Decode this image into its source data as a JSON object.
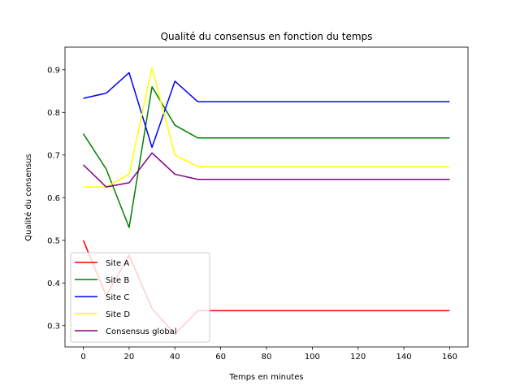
{
  "chart_data": {
    "type": "line",
    "title": "Qualité du consensus en fonction du temps",
    "xlabel": "Temps en minutes",
    "ylabel": "Qualité du consensus",
    "x": [
      0,
      10,
      20,
      30,
      40,
      50,
      60,
      70,
      80,
      90,
      100,
      110,
      120,
      130,
      140,
      150,
      160
    ],
    "xlim": [
      -8,
      168
    ],
    "ylim": [
      0.25,
      0.953
    ],
    "xticks": [
      0,
      20,
      40,
      60,
      80,
      100,
      120,
      140,
      160
    ],
    "yticks": [
      0.3,
      0.4,
      0.5,
      0.6,
      0.7,
      0.8,
      0.9
    ],
    "xtick_labels": [
      "0",
      "20",
      "40",
      "60",
      "80",
      "100",
      "120",
      "140",
      "160"
    ],
    "ytick_labels": [
      "0.3",
      "0.4",
      "0.5",
      "0.6",
      "0.7",
      "0.8",
      "0.9"
    ],
    "grid": false,
    "legend_position": "lower-left",
    "series": [
      {
        "name": "Site A",
        "color": "#ff0000",
        "values": [
          0.5,
          0.37,
          0.465,
          0.34,
          0.28,
          0.335,
          0.335,
          0.335,
          0.335,
          0.335,
          0.335,
          0.335,
          0.335,
          0.335,
          0.335,
          0.335,
          0.335
        ]
      },
      {
        "name": "Site B",
        "color": "#008000",
        "values": [
          0.75,
          0.667,
          0.53,
          0.86,
          0.77,
          0.74,
          0.74,
          0.74,
          0.74,
          0.74,
          0.74,
          0.74,
          0.74,
          0.74,
          0.74,
          0.74,
          0.74
        ]
      },
      {
        "name": "Site C",
        "color": "#0000ff",
        "values": [
          0.833,
          0.845,
          0.893,
          0.718,
          0.873,
          0.825,
          0.825,
          0.825,
          0.825,
          0.825,
          0.825,
          0.825,
          0.825,
          0.825,
          0.825,
          0.825,
          0.825
        ]
      },
      {
        "name": "Site D",
        "color": "#ffff00",
        "values": [
          0.625,
          0.625,
          0.655,
          0.905,
          0.7,
          0.673,
          0.673,
          0.673,
          0.673,
          0.673,
          0.673,
          0.673,
          0.673,
          0.673,
          0.673,
          0.673,
          0.673
        ]
      },
      {
        "name": "Consensus global",
        "color": "#800080",
        "values": [
          0.677,
          0.625,
          0.635,
          0.705,
          0.655,
          0.643,
          0.643,
          0.643,
          0.643,
          0.643,
          0.643,
          0.643,
          0.643,
          0.643,
          0.643,
          0.643,
          0.643
        ]
      }
    ]
  }
}
